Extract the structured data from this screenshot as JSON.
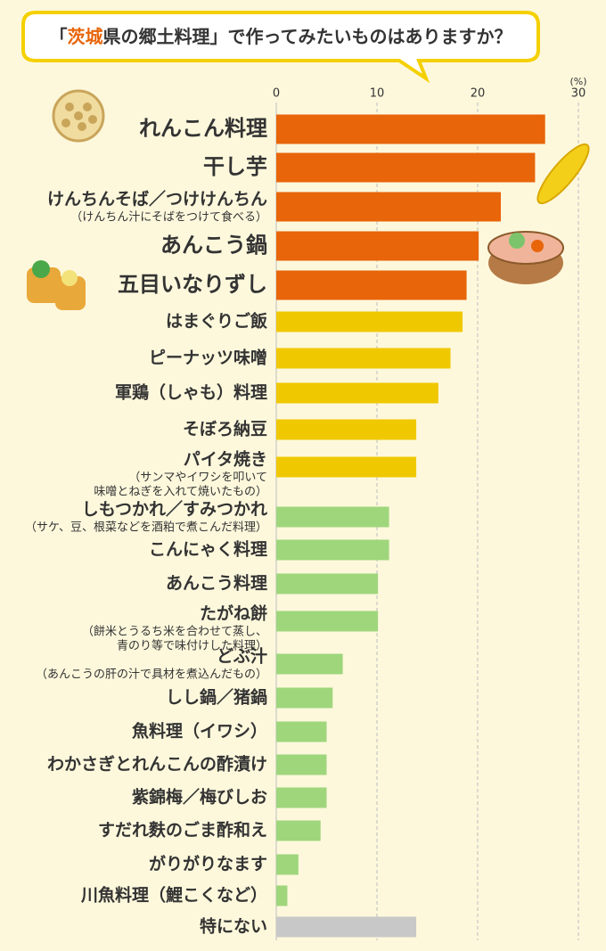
{
  "chart_data": {
    "type": "bar",
    "orientation": "horizontal",
    "title": [
      "「",
      "茨城",
      "県の郷土料理」で作ってみたいものはありますか？"
    ],
    "title_highlight_color": "#e8650a",
    "unit_label": "(%)",
    "categories": [
      "れんこん料理",
      "干し芋",
      "けんちんそば／つけけんちん",
      "あんこう鍋",
      "五目いなりずし",
      "はまぐりご飯",
      "ピーナッツ味噌",
      "軍鶏（しゃも）料理",
      "そぼろ納豆",
      "パイタ焼き",
      "しもつかれ／すみつかれ",
      "こんにゃく料理",
      "あんこう料理",
      "たがね餅",
      "どぶ汁",
      "しし鍋／猪鍋",
      "魚料理（イワシ）",
      "わかさぎとれんこんの酢漬け",
      "紫錦梅／梅びしお",
      "すだれ麩のごま酢和え",
      "がりがりなます",
      "川魚料理（鯉こくなど）",
      "特にない"
    ],
    "sublabels": [
      null,
      null,
      [
        "（けんちん汁にそばをつけて食べる）"
      ],
      null,
      null,
      null,
      null,
      null,
      null,
      [
        "（サンマやイワシを叩いて",
        "味噌とねぎを入れて焼いたもの）"
      ],
      [
        "（サケ、豆、根菜などを酒粕で煮こんだ料理）"
      ],
      null,
      null,
      [
        "（餅米とうるち米を合わせて蒸し、",
        "青のり等で味付けした料理）"
      ],
      [
        "（あんこうの肝の汁で具材を煮込んだもの）"
      ],
      null,
      null,
      null,
      null,
      null,
      null,
      null,
      null
    ],
    "values": [
      26.7,
      25.7,
      22.3,
      20.1,
      18.9,
      18.5,
      17.3,
      16.1,
      13.9,
      13.9,
      11.2,
      11.2,
      10.1,
      10.1,
      6.6,
      5.6,
      5.0,
      5.0,
      5.0,
      4.4,
      2.2,
      1.1,
      13.9
    ],
    "colors": [
      "#e8650a",
      "#e8650a",
      "#e8650a",
      "#e8650a",
      "#e8650a",
      "#f0c800",
      "#f0c800",
      "#f0c800",
      "#f0c800",
      "#f0c800",
      "#9fd67c",
      "#9fd67c",
      "#9fd67c",
      "#9fd67c",
      "#9fd67c",
      "#9fd67c",
      "#9fd67c",
      "#9fd67c",
      "#9fd67c",
      "#9fd67c",
      "#9fd67c",
      "#9fd67c",
      "#c8c8c8"
    ],
    "xlim": [
      0,
      30
    ],
    "xticks": [
      0,
      10,
      20,
      30
    ],
    "grid": true
  }
}
